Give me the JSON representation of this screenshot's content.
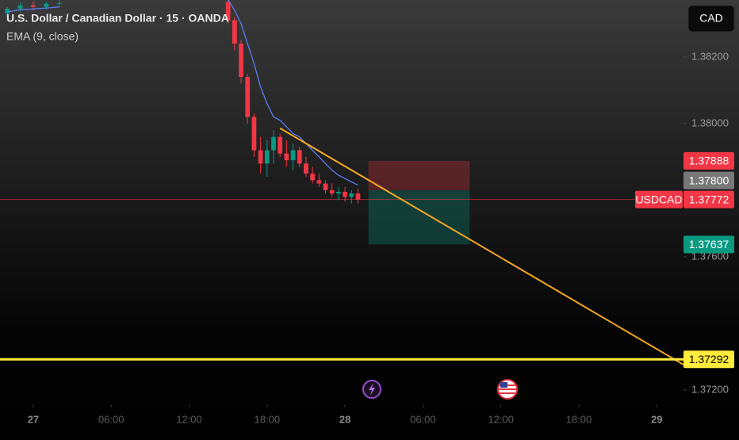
{
  "chart_data": {
    "type": "candlestick",
    "title": "U.S. Dollar / Canadian Dollar · 15 · OANDA",
    "indicator": "EMA (9, close)",
    "currency": "CAD",
    "up_color": "#089981",
    "down_color": "#f23645",
    "ema_color": "#5b7cf2",
    "x": [
      -2,
      -1,
      0,
      1,
      2,
      8,
      15,
      15.5,
      16,
      16.5,
      17,
      17.5,
      18,
      18.5,
      19,
      19.5,
      20,
      20.5,
      21,
      21.5,
      22,
      22.5,
      23,
      23.5,
      24,
      24.5,
      25
    ],
    "open": [
      1.3833,
      1.38345,
      1.38355,
      1.3835,
      1.3836,
      null,
      1.38365,
      1.3831,
      1.3824,
      1.3814,
      1.3802,
      1.3792,
      1.3788,
      1.3792,
      1.3796,
      1.3791,
      1.3789,
      1.3792,
      1.3788,
      1.3785,
      1.3783,
      1.3782,
      1.378,
      1.3779,
      1.37795,
      1.3778,
      1.3779
    ],
    "high": [
      1.3835,
      1.38365,
      1.38368,
      1.38366,
      1.3837,
      null,
      1.38371,
      1.3832,
      1.3825,
      1.3815,
      1.3803,
      1.3796,
      1.3795,
      1.3798,
      1.3797,
      1.3795,
      1.3794,
      1.3793,
      1.379,
      1.3787,
      1.3785,
      1.3783,
      1.3782,
      1.3781,
      1.3781,
      1.378,
      1.37805
    ],
    "low": [
      1.3832,
      1.38335,
      1.3834,
      1.38342,
      1.3835,
      null,
      1.383,
      1.3822,
      1.3812,
      1.38,
      1.379,
      1.3785,
      1.3784,
      1.3788,
      1.379,
      1.3787,
      1.3786,
      1.3787,
      1.3784,
      1.3782,
      1.3781,
      1.3779,
      1.3778,
      1.3777,
      1.37765,
      1.3776,
      1.3776
    ],
    "close": [
      1.38345,
      1.38355,
      1.3835,
      1.3836,
      1.38362,
      null,
      1.3831,
      1.3824,
      1.3814,
      1.3802,
      1.3792,
      1.3788,
      1.3792,
      1.3796,
      1.3791,
      1.3789,
      1.3792,
      1.3788,
      1.3785,
      1.3783,
      1.3782,
      1.378,
      1.3779,
      1.37795,
      1.3778,
      1.3779,
      1.37772
    ],
    "ema": [
      1.38335,
      1.38342,
      1.38344,
      1.38347,
      1.3835,
      null,
      1.38372,
      1.3834,
      1.383,
      1.3824,
      1.3818,
      1.3811,
      1.3806,
      1.3802,
      1.3801,
      1.3799,
      1.3797,
      1.3796,
      1.3794,
      1.3792,
      1.379,
      1.3788,
      1.3786,
      1.37845,
      1.37835,
      1.37825,
      1.37815
    ],
    "xlim": [
      -2.56,
      50.06
    ],
    "ylim": [
      1.37157,
      1.38371
    ],
    "yticks": [
      {
        "value": 1.382,
        "label": "1.38200"
      },
      {
        "value": 1.38,
        "label": "1.38000"
      },
      {
        "value": 1.376,
        "label": "1.37600"
      },
      {
        "value": 1.372,
        "label": "1.37200"
      }
    ],
    "xticks": [
      {
        "value": 0,
        "label": "27"
      },
      {
        "value": 6,
        "label": "06:00"
      },
      {
        "value": 12,
        "label": "12:00"
      },
      {
        "value": 18,
        "label": "18:00"
      },
      {
        "value": 24,
        "label": "28"
      },
      {
        "value": 30,
        "label": "06:00"
      },
      {
        "value": 36,
        "label": "12:00"
      },
      {
        "value": 42,
        "label": "18:00"
      },
      {
        "value": 48,
        "label": "29"
      }
    ],
    "trendline": {
      "color": "#f5a623",
      "x": [
        19,
        50.06
      ],
      "values": [
        1.37986,
        1.37276
      ]
    },
    "position": {
      "x": [
        25.8,
        33.6
      ],
      "entry": 1.378,
      "stop": 1.37888,
      "target": 1.37637
    },
    "current_price_line": {
      "value": 1.37772,
      "color": "#f23645"
    },
    "support_line": {
      "value": 1.37292,
      "color": "#ffeb3b"
    },
    "price_labels": [
      {
        "value": 1.37888,
        "label": "1.37888",
        "color": "#f23645"
      },
      {
        "value": 1.378,
        "label": "1.37800",
        "color": "#787878"
      },
      {
        "value": 1.37772,
        "label": "1.37772",
        "color": "#f23645",
        "name": "USDCAD"
      },
      {
        "value": 1.37637,
        "label": "1.37637",
        "color": "#089981"
      },
      {
        "value": 1.37292,
        "label": "1.37292",
        "color": "#ffeb3b",
        "text_color": "#000000"
      }
    ]
  }
}
